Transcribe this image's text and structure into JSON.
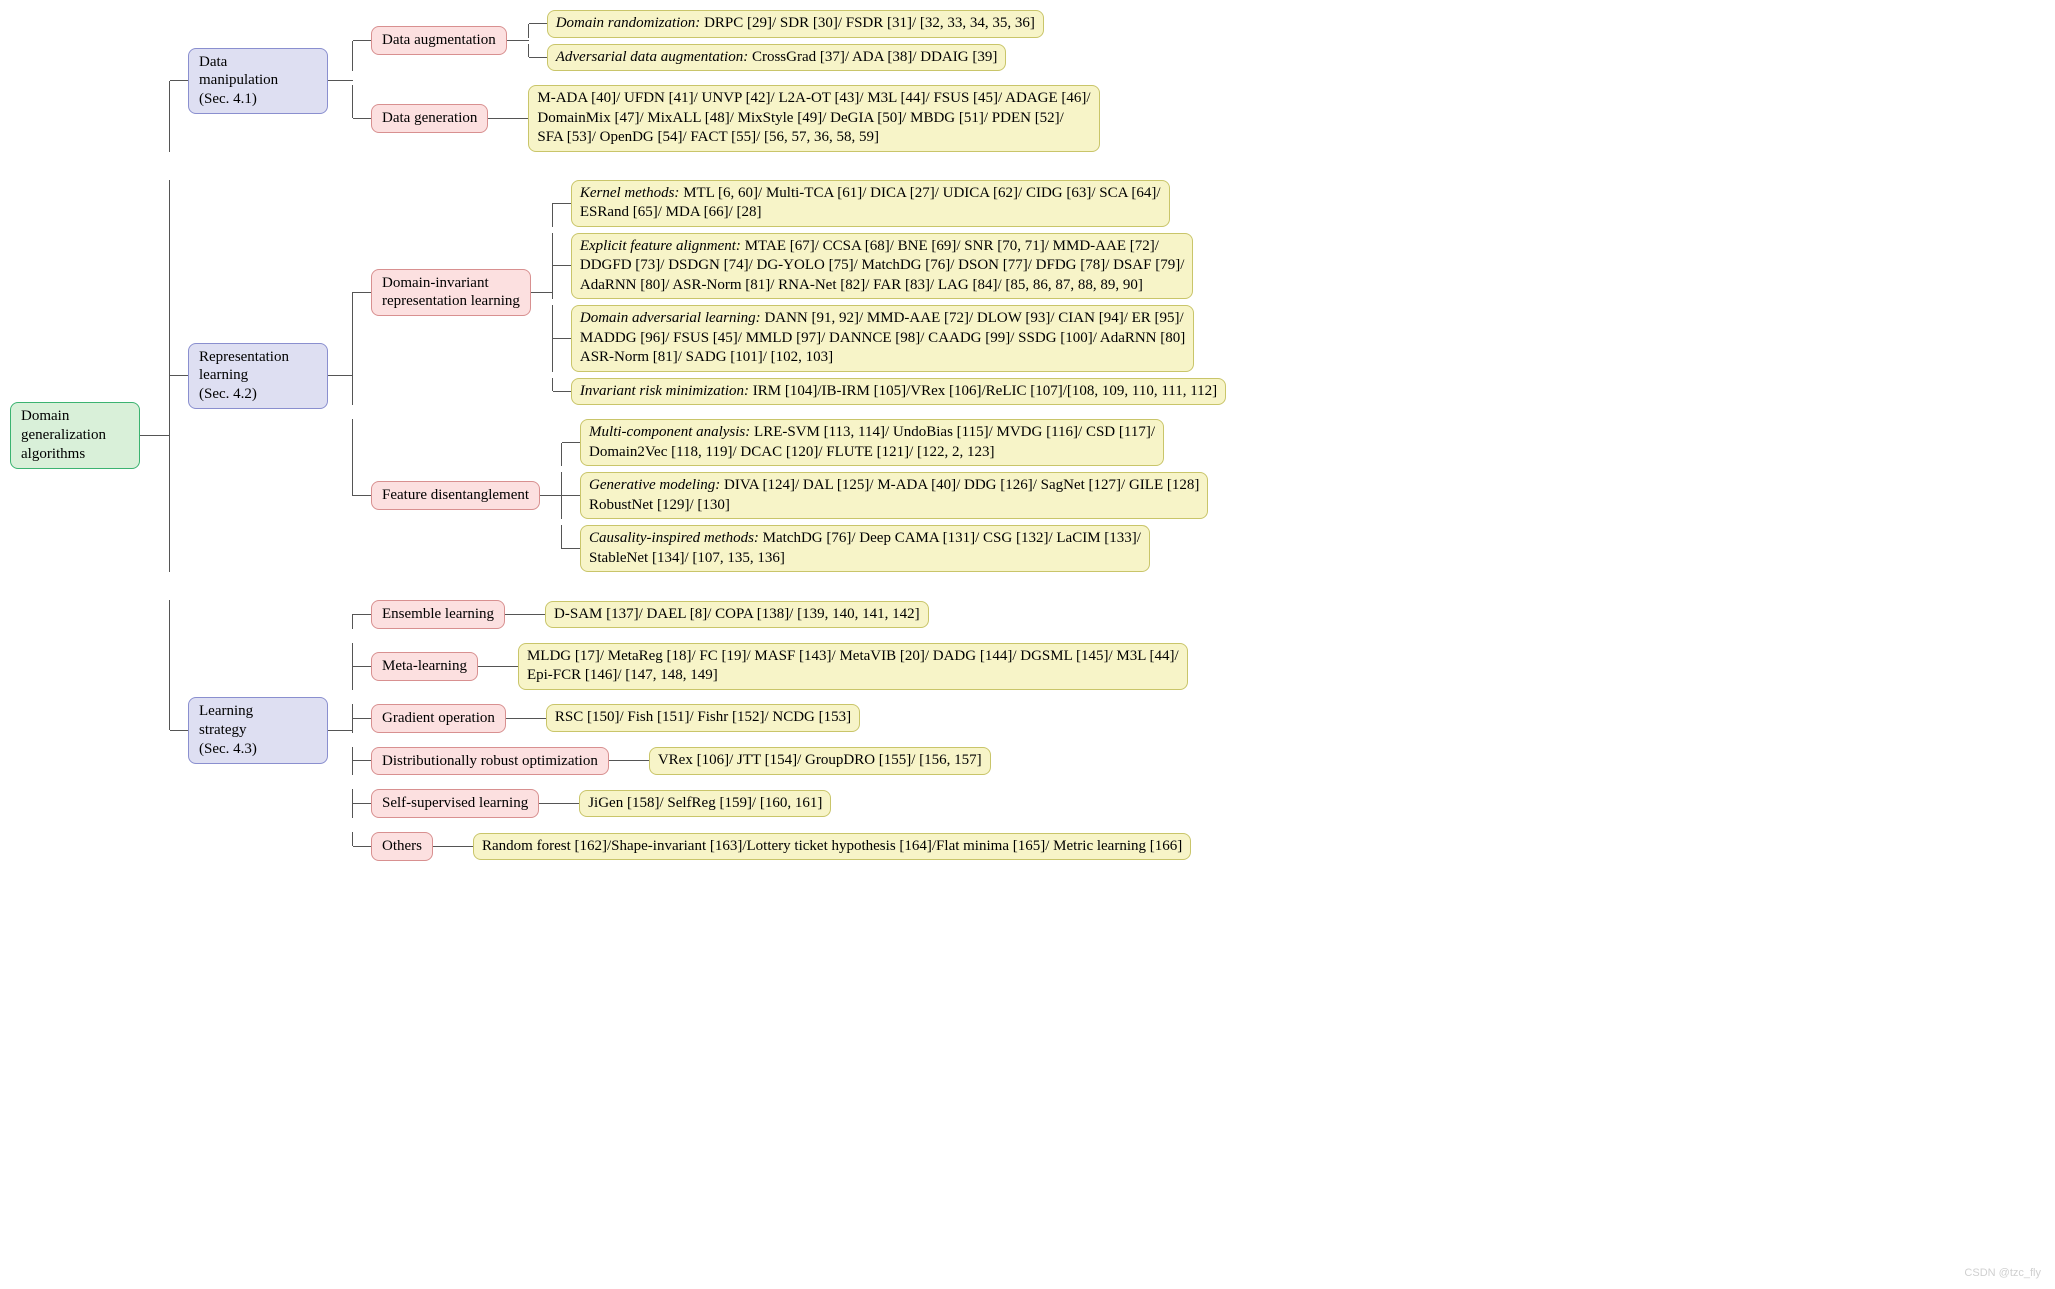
{
  "colors": {
    "root_bg": "#d9f0d9",
    "root_border": "#3cb371",
    "cat_bg": "#dedff2",
    "cat_border": "#8a8fcf",
    "sub_bg": "#fce0e0",
    "sub_border": "#d89090",
    "leaf_bg": "#f7f4c8",
    "leaf_border": "#c9c56a",
    "line": "#555555"
  },
  "layout": {
    "root_width": 130,
    "cat_width": 140,
    "conn_root_len": 30,
    "conn_cat_len": 25,
    "conn_sub_len": 22,
    "tick_len": 18,
    "row_gap": 6,
    "cat_gap": 28,
    "sub_gap": 14,
    "font_size": 15
  },
  "root": {
    "label": "Domain generalization algorithms"
  },
  "categories": [
    {
      "label_lines": [
        "Data",
        "manipulation",
        "(Sec. 4.1)"
      ],
      "subs": [
        {
          "label": "Data augmentation",
          "leaves": [
            {
              "prefix": "Domain randomization:",
              "body": " DRPC [29]/ SDR [30]/ FSDR [31]/ [32, 33, 34, 35, 36]"
            },
            {
              "prefix": "Adversarial data augmentation:",
              "body": " CrossGrad [37]/ ADA [38]/ DDAIG [39]"
            }
          ]
        },
        {
          "label": "Data generation",
          "leaves": [
            {
              "prefix": "",
              "body": "M-ADA [40]/ UFDN [41]/ UNVP [42]/ L2A-OT [43]/ M3L [44]/ FSUS [45]/ ADAGE [46]/\nDomainMix [47]/ MixALL [48]/ MixStyle [49]/ DeGIA [50]/ MBDG [51]/ PDEN [52]/\nSFA [53]/ OpenDG [54]/ FACT [55]/ [56, 57, 36, 58, 59]"
            }
          ]
        }
      ]
    },
    {
      "label_lines": [
        "Representation",
        "learning",
        "(Sec. 4.2)"
      ],
      "subs": [
        {
          "label_lines": [
            "Domain-invariant",
            "representation learning"
          ],
          "leaves": [
            {
              "prefix": "Kernel methods:",
              "body": " MTL [6, 60]/ Multi-TCA [61]/ DICA [27]/ UDICA [62]/ CIDG [63]/ SCA [64]/\nESRand [65]/ MDA [66]/ [28]"
            },
            {
              "prefix": "Explicit feature alignment:",
              "body": " MTAE [67]/ CCSA [68]/ BNE [69]/ SNR [70, 71]/ MMD-AAE [72]/\nDDGFD [73]/ DSDGN [74]/ DG-YOLO [75]/ MatchDG [76]/ DSON [77]/ DFDG [78]/ DSAF [79]/\nAdaRNN [80]/ ASR-Norm [81]/ RNA-Net [82]/ FAR [83]/ LAG [84]/ [85, 86, 87, 88, 89, 90]"
            },
            {
              "prefix": "Domain adversarial learning:",
              "body": " DANN [91, 92]/ MMD-AAE [72]/ DLOW [93]/ CIAN [94]/ ER [95]/\nMADDG [96]/ FSUS [45]/ MMLD [97]/ DANNCE [98]/ CAADG [99]/ SSDG [100]/ AdaRNN [80]\nASR-Norm [81]/ SADG [101]/ [102, 103]"
            },
            {
              "prefix": "Invariant risk minimization:",
              "body": " IRM [104]/IB-IRM [105]/VRex [106]/ReLIC [107]/[108, 109, 110, 111, 112]"
            }
          ]
        },
        {
          "label": "Feature disentanglement",
          "leaves": [
            {
              "prefix": "Multi-component analysis:",
              "body": " LRE-SVM [113, 114]/ UndoBias [115]/ MVDG [116]/ CSD [117]/\nDomain2Vec [118, 119]/ DCAC [120]/ FLUTE [121]/ [122, 2, 123]"
            },
            {
              "prefix": "Generative modeling:",
              "body": " DIVA [124]/ DAL [125]/ M-ADA [40]/ DDG [126]/ SagNet [127]/ GILE [128]\nRobustNet [129]/ [130]"
            },
            {
              "prefix": "Causality-inspired methods:",
              "body": " MatchDG [76]/ Deep CAMA [131]/ CSG [132]/ LaCIM [133]/\nStableNet [134]/ [107, 135, 136]"
            }
          ]
        }
      ]
    },
    {
      "label_lines": [
        "Learning",
        "strategy",
        "(Sec. 4.3)"
      ],
      "subs": [
        {
          "label": "Ensemble learning",
          "leaves": [
            {
              "prefix": "",
              "body": "D-SAM [137]/ DAEL [8]/ COPA [138]/ [139, 140, 141, 142]"
            }
          ]
        },
        {
          "label": "Meta-learning",
          "leaves": [
            {
              "prefix": "",
              "body": "MLDG [17]/ MetaReg [18]/ FC [19]/ MASF [143]/ MetaVIB [20]/ DADG [144]/ DGSML [145]/ M3L [44]/\nEpi-FCR [146]/ [147, 148, 149]"
            }
          ]
        },
        {
          "label": "Gradient operation",
          "leaves": [
            {
              "prefix": "",
              "body": "RSC [150]/ Fish [151]/ Fishr [152]/ NCDG [153]"
            }
          ]
        },
        {
          "label": "Distributionally robust optimization",
          "leaves": [
            {
              "prefix": "",
              "body": "VRex [106]/ JTT [154]/ GroupDRO [155]/ [156, 157]"
            }
          ]
        },
        {
          "label": "Self-supervised learning",
          "leaves": [
            {
              "prefix": "",
              "body": "JiGen [158]/ SelfReg [159]/ [160, 161]"
            }
          ]
        },
        {
          "label": "Others",
          "leaves": [
            {
              "prefix": "",
              "body": "Random forest [162]/Shape-invariant [163]/Lottery ticket hypothesis [164]/Flat minima [165]/ Metric learning [166]"
            }
          ]
        }
      ]
    }
  ],
  "watermark": "CSDN @tzc_fly"
}
